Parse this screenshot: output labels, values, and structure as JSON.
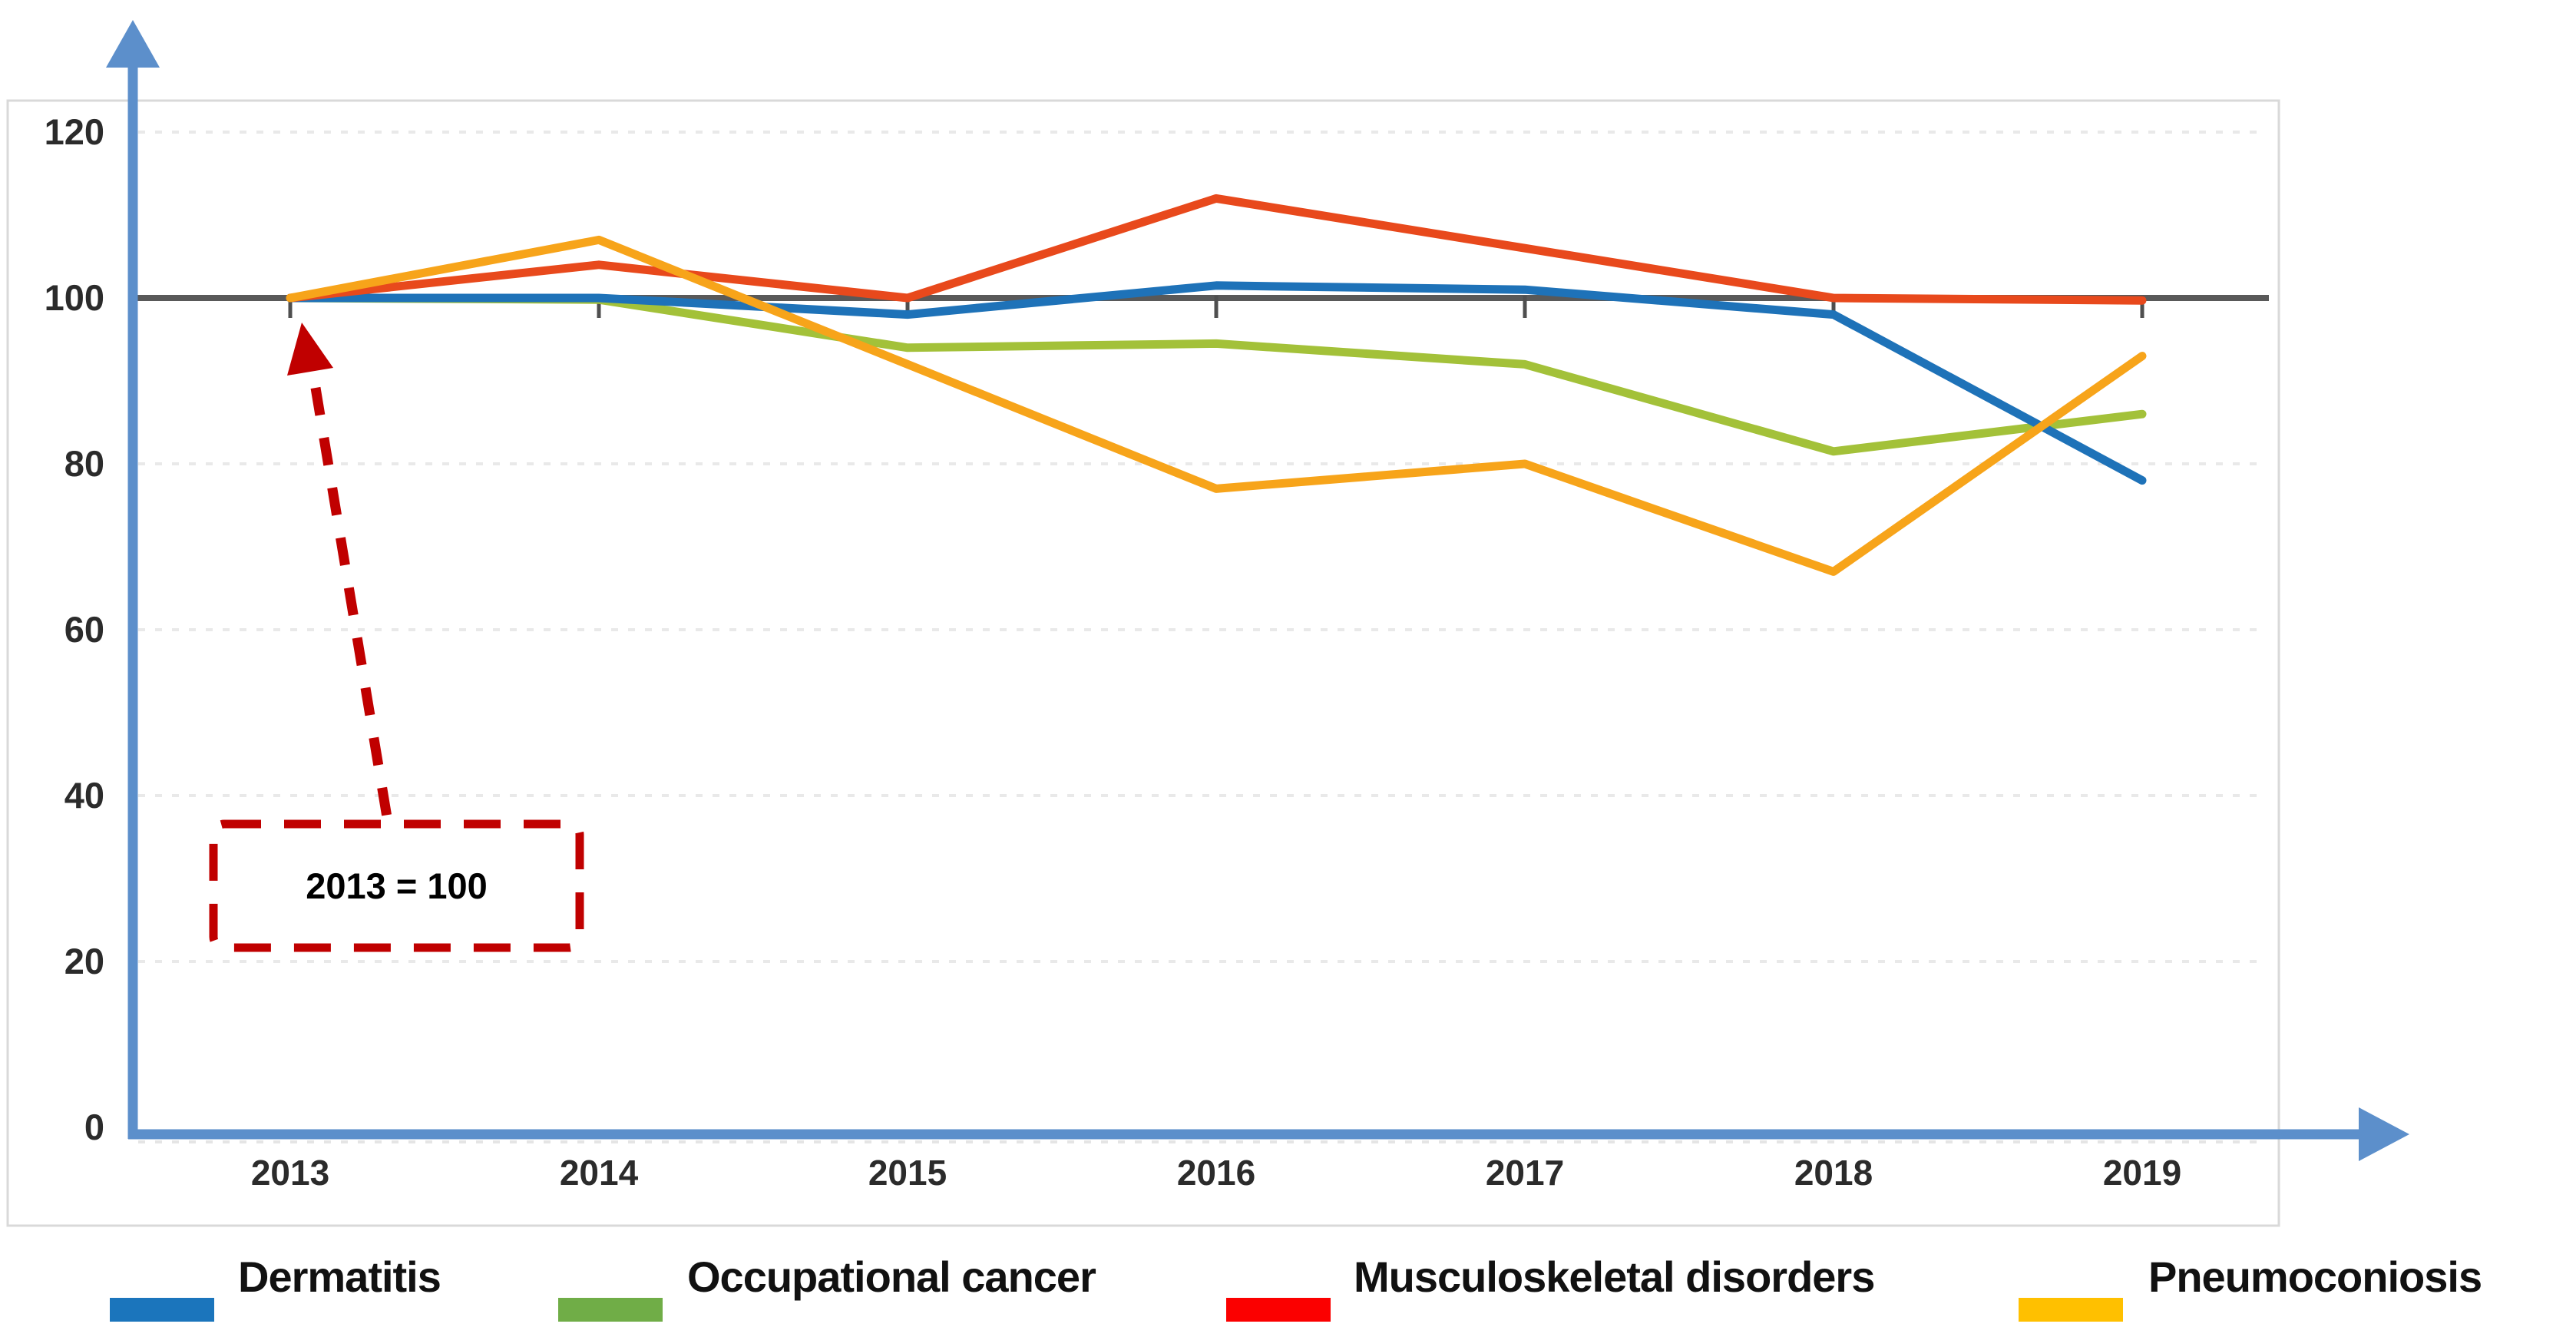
{
  "chart_data": {
    "type": "line",
    "title": "",
    "categories": [
      "2013",
      "2014",
      "2015",
      "2016",
      "2017",
      "2018",
      "2019"
    ],
    "y_axis": {
      "tick_labels": [
        "0",
        "20",
        "40",
        "60",
        "80",
        "100",
        "120"
      ],
      "tick_values": [
        0,
        20,
        40,
        60,
        80,
        100,
        120
      ],
      "ylim": [
        0,
        124
      ]
    },
    "grid": "horizontal-dashed-light",
    "legend_position": "bottom",
    "reference_line": {
      "value": 100,
      "color": "#595959"
    },
    "annotation": {
      "text": "2013 = 100",
      "color": "#C00000",
      "points_to": "2013 baseline value 100"
    },
    "series": [
      {
        "name": "Dermatitis",
        "color": "#1E72B8",
        "legend_color": "#1B75BC",
        "values": [
          100,
          100,
          98,
          101.5,
          101,
          98,
          78
        ]
      },
      {
        "name": "Occupational cancer",
        "color": "#A3C139",
        "legend_color": "#70AD47",
        "values": [
          100,
          99.8,
          94,
          94.5,
          92,
          81.5,
          86
        ]
      },
      {
        "name": "Musculoskeletal disorders",
        "color": "#E8491C",
        "legend_color": "#FB0000",
        "values": [
          100,
          104,
          100,
          112,
          106,
          100,
          99.7
        ]
      },
      {
        "name": "Pneumoconiosis",
        "color": "#F7A41A",
        "legend_color": "#FFC000",
        "values": [
          100,
          107,
          92,
          77,
          80,
          67,
          93
        ]
      }
    ],
    "colors": {
      "axis_arrow": "#5C8FCB",
      "reference_line": "#595959",
      "gridline": "#E9E9E9",
      "frame": "#D9D9D9",
      "annotation_red": "#C00000"
    }
  }
}
